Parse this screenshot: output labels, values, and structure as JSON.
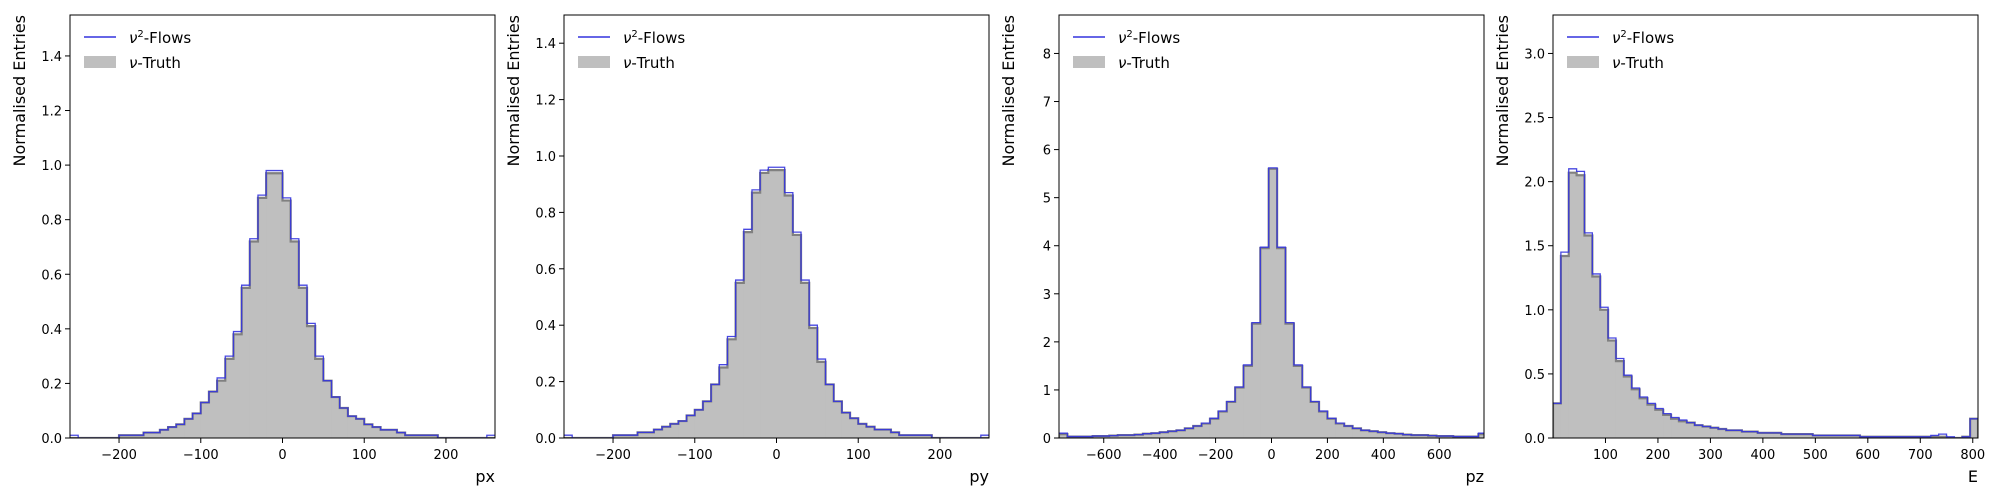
{
  "colors": {
    "flows_line": "#3333dd",
    "truth_fill": "#bfbfbf",
    "truth_edge": "#808080",
    "frame": "#000000"
  },
  "chart_data": [
    {
      "type": "histogram",
      "xlabel": "px",
      "ylabel": "Normalised Entries",
      "xlim": [
        -260,
        260
      ],
      "ylim": [
        0,
        1.55
      ],
      "xticks": [
        -200,
        -100,
        0,
        100,
        200
      ],
      "yticks": [
        0.0,
        0.2,
        0.4,
        0.6,
        0.8,
        1.0,
        1.2,
        1.4
      ],
      "ytick_labels": [
        "0.0",
        "0.2",
        "0.4",
        "0.6",
        "0.8",
        "1.0",
        "1.2",
        "1.4"
      ],
      "legend": {
        "position": "top-left",
        "entries": [
          {
            "key": "flows",
            "prefix": "ν",
            "sup": "2",
            "suffix": "-Flows"
          },
          {
            "key": "truth",
            "prefix": "ν",
            "sup": "",
            "suffix": "-Truth"
          }
        ]
      },
      "bin_edges": [
        -260,
        -250,
        -240,
        -230,
        -220,
        -210,
        -200,
        -190,
        -180,
        -170,
        -160,
        -150,
        -140,
        -130,
        -120,
        -110,
        -100,
        -90,
        -80,
        -70,
        -60,
        -50,
        -40,
        -30,
        -20,
        -10,
        0,
        10,
        20,
        30,
        40,
        50,
        60,
        70,
        80,
        90,
        100,
        110,
        120,
        130,
        140,
        150,
        160,
        170,
        180,
        190,
        200,
        210,
        220,
        230,
        240,
        250,
        260
      ],
      "series": [
        {
          "name": "ν-Truth",
          "style": "filled",
          "values": [
            0.0,
            0.0,
            0.0,
            0.0,
            0.0,
            0.0,
            0.01,
            0.01,
            0.01,
            0.02,
            0.02,
            0.03,
            0.04,
            0.05,
            0.07,
            0.09,
            0.13,
            0.17,
            0.21,
            0.29,
            0.38,
            0.55,
            0.72,
            0.88,
            0.97,
            0.97,
            0.87,
            0.72,
            0.55,
            0.41,
            0.29,
            0.21,
            0.15,
            0.11,
            0.08,
            0.07,
            0.05,
            0.04,
            0.03,
            0.03,
            0.02,
            0.01,
            0.01,
            0.01,
            0.01,
            0.0,
            0.0,
            0.0,
            0.0,
            0.0,
            0.0,
            0.0
          ]
        },
        {
          "name": "ν²-Flows",
          "style": "step",
          "values": [
            0.01,
            0.0,
            0.0,
            0.0,
            0.0,
            0.0,
            0.01,
            0.01,
            0.01,
            0.02,
            0.02,
            0.03,
            0.04,
            0.05,
            0.07,
            0.09,
            0.13,
            0.17,
            0.22,
            0.3,
            0.39,
            0.56,
            0.73,
            0.89,
            0.98,
            0.98,
            0.88,
            0.73,
            0.56,
            0.42,
            0.3,
            0.21,
            0.15,
            0.11,
            0.08,
            0.07,
            0.05,
            0.04,
            0.03,
            0.03,
            0.02,
            0.01,
            0.01,
            0.01,
            0.01,
            0.0,
            0.0,
            0.0,
            0.0,
            0.0,
            0.0,
            0.01
          ]
        }
      ]
    },
    {
      "type": "histogram",
      "xlabel": "py",
      "ylabel": "Normalised Entries",
      "xlim": [
        -260,
        260
      ],
      "ylim": [
        0,
        1.5
      ],
      "xticks": [
        -200,
        -100,
        0,
        100,
        200
      ],
      "yticks": [
        0.0,
        0.2,
        0.4,
        0.6,
        0.8,
        1.0,
        1.2,
        1.4
      ],
      "ytick_labels": [
        "0.0",
        "0.2",
        "0.4",
        "0.6",
        "0.8",
        "1.0",
        "1.2",
        "1.4"
      ],
      "legend": {
        "position": "top-left",
        "entries": [
          {
            "key": "flows",
            "prefix": "ν",
            "sup": "2",
            "suffix": "-Flows"
          },
          {
            "key": "truth",
            "prefix": "ν",
            "sup": "",
            "suffix": "-Truth"
          }
        ]
      },
      "bin_edges": [
        -260,
        -250,
        -240,
        -230,
        -220,
        -210,
        -200,
        -190,
        -180,
        -170,
        -160,
        -150,
        -140,
        -130,
        -120,
        -110,
        -100,
        -90,
        -80,
        -70,
        -60,
        -50,
        -40,
        -30,
        -20,
        -10,
        0,
        10,
        20,
        30,
        40,
        50,
        60,
        70,
        80,
        90,
        100,
        110,
        120,
        130,
        140,
        150,
        160,
        170,
        180,
        190,
        200,
        210,
        220,
        230,
        240,
        250,
        260
      ],
      "series": [
        {
          "name": "ν-Truth",
          "style": "filled",
          "values": [
            0.0,
            0.0,
            0.0,
            0.0,
            0.0,
            0.0,
            0.01,
            0.01,
            0.01,
            0.02,
            0.02,
            0.03,
            0.04,
            0.05,
            0.06,
            0.08,
            0.1,
            0.13,
            0.19,
            0.25,
            0.35,
            0.55,
            0.73,
            0.87,
            0.94,
            0.95,
            0.95,
            0.86,
            0.72,
            0.55,
            0.39,
            0.27,
            0.19,
            0.13,
            0.09,
            0.07,
            0.05,
            0.04,
            0.03,
            0.03,
            0.02,
            0.01,
            0.01,
            0.01,
            0.01,
            0.0,
            0.0,
            0.0,
            0.0,
            0.0,
            0.0,
            0.0
          ]
        },
        {
          "name": "ν²-Flows",
          "style": "step",
          "values": [
            0.01,
            0.0,
            0.0,
            0.0,
            0.0,
            0.0,
            0.01,
            0.01,
            0.01,
            0.02,
            0.02,
            0.03,
            0.04,
            0.05,
            0.06,
            0.08,
            0.1,
            0.13,
            0.19,
            0.26,
            0.36,
            0.56,
            0.74,
            0.88,
            0.95,
            0.96,
            0.96,
            0.87,
            0.73,
            0.56,
            0.4,
            0.28,
            0.19,
            0.13,
            0.09,
            0.07,
            0.05,
            0.04,
            0.03,
            0.03,
            0.02,
            0.01,
            0.01,
            0.01,
            0.01,
            0.0,
            0.0,
            0.0,
            0.0,
            0.0,
            0.0,
            0.01
          ]
        }
      ]
    },
    {
      "type": "histogram",
      "xlabel": "pz",
      "ylabel": "Normalised Entries",
      "xlim": [
        -760,
        760
      ],
      "ylim": [
        0,
        8.8
      ],
      "xticks": [
        -600,
        -400,
        -200,
        0,
        200,
        400,
        600
      ],
      "yticks": [
        0,
        1,
        2,
        3,
        4,
        5,
        6,
        7,
        8
      ],
      "ytick_labels": [
        "0",
        "1",
        "2",
        "3",
        "4",
        "5",
        "6",
        "7",
        "8"
      ],
      "legend": {
        "position": "top-left",
        "entries": [
          {
            "key": "flows",
            "prefix": "ν",
            "sup": "2",
            "suffix": "-Flows"
          },
          {
            "key": "truth",
            "prefix": "ν",
            "sup": "",
            "suffix": "-Truth"
          }
        ]
      },
      "bin_edges": [
        -760,
        -730,
        -700,
        -670,
        -640,
        -610,
        -580,
        -550,
        -520,
        -490,
        -460,
        -430,
        -400,
        -370,
        -340,
        -310,
        -280,
        -250,
        -220,
        -190,
        -160,
        -130,
        -100,
        -70,
        -40,
        -10,
        20,
        50,
        80,
        110,
        140,
        170,
        200,
        230,
        260,
        290,
        320,
        350,
        380,
        410,
        440,
        470,
        500,
        530,
        560,
        590,
        620,
        650,
        680,
        710,
        740,
        770
      ],
      "series": [
        {
          "name": "ν-Truth",
          "style": "filled",
          "values": [
            0.08,
            0.03,
            0.03,
            0.03,
            0.04,
            0.04,
            0.05,
            0.06,
            0.06,
            0.07,
            0.09,
            0.1,
            0.12,
            0.14,
            0.16,
            0.2,
            0.25,
            0.3,
            0.4,
            0.55,
            0.75,
            1.05,
            1.5,
            2.38,
            3.95,
            5.6,
            3.95,
            2.38,
            1.5,
            1.05,
            0.75,
            0.55,
            0.4,
            0.3,
            0.25,
            0.2,
            0.16,
            0.14,
            0.12,
            0.1,
            0.09,
            0.07,
            0.06,
            0.06,
            0.05,
            0.04,
            0.04,
            0.03,
            0.03,
            0.03,
            0.08
          ]
        },
        {
          "name": "ν²-Flows",
          "style": "step",
          "values": [
            0.1,
            0.03,
            0.03,
            0.03,
            0.04,
            0.04,
            0.05,
            0.06,
            0.06,
            0.07,
            0.09,
            0.1,
            0.12,
            0.14,
            0.16,
            0.2,
            0.25,
            0.31,
            0.41,
            0.56,
            0.76,
            1.06,
            1.52,
            2.4,
            3.97,
            5.62,
            3.97,
            2.4,
            1.52,
            1.06,
            0.76,
            0.56,
            0.41,
            0.31,
            0.25,
            0.2,
            0.16,
            0.14,
            0.12,
            0.1,
            0.09,
            0.07,
            0.06,
            0.06,
            0.05,
            0.04,
            0.04,
            0.03,
            0.03,
            0.03,
            0.1
          ]
        }
      ]
    },
    {
      "type": "histogram",
      "xlabel": "E",
      "ylabel": "Normalised Entries",
      "xlim": [
        0,
        810
      ],
      "ylim": [
        0,
        3.3
      ],
      "xticks": [
        100,
        200,
        300,
        400,
        500,
        600,
        700,
        800
      ],
      "yticks": [
        0.0,
        0.5,
        1.0,
        1.5,
        2.0,
        2.5,
        3.0
      ],
      "ytick_labels": [
        "0.0",
        "0.5",
        "1.0",
        "1.5",
        "2.0",
        "2.5",
        "3.0"
      ],
      "legend": {
        "position": "top-left",
        "entries": [
          {
            "key": "flows",
            "prefix": "ν",
            "sup": "2",
            "suffix": "-Flows"
          },
          {
            "key": "truth",
            "prefix": "ν",
            "sup": "",
            "suffix": "-Truth"
          }
        ]
      },
      "bin_edges": [
        0,
        15,
        30,
        45,
        60,
        75,
        90,
        105,
        120,
        135,
        150,
        165,
        180,
        195,
        210,
        225,
        240,
        255,
        270,
        285,
        300,
        315,
        330,
        345,
        360,
        375,
        390,
        405,
        420,
        435,
        450,
        465,
        480,
        495,
        510,
        525,
        540,
        555,
        570,
        585,
        600,
        615,
        630,
        645,
        660,
        675,
        690,
        705,
        720,
        735,
        750,
        765,
        780,
        795,
        810
      ],
      "series": [
        {
          "name": "ν-Truth",
          "style": "filled",
          "values": [
            0.27,
            1.42,
            2.07,
            2.05,
            1.58,
            1.26,
            1.0,
            0.76,
            0.6,
            0.48,
            0.38,
            0.31,
            0.26,
            0.22,
            0.18,
            0.15,
            0.13,
            0.12,
            0.1,
            0.09,
            0.08,
            0.07,
            0.06,
            0.06,
            0.05,
            0.05,
            0.04,
            0.04,
            0.04,
            0.03,
            0.03,
            0.03,
            0.03,
            0.02,
            0.02,
            0.02,
            0.02,
            0.02,
            0.02,
            0.01,
            0.01,
            0.01,
            0.01,
            0.01,
            0.01,
            0.01,
            0.01,
            0.01,
            0.01,
            0.01,
            0.0,
            0.0,
            0.01,
            0.15
          ]
        },
        {
          "name": "ν²-Flows",
          "style": "step",
          "values": [
            0.27,
            1.45,
            2.1,
            2.08,
            1.6,
            1.28,
            1.02,
            0.78,
            0.62,
            0.49,
            0.39,
            0.32,
            0.27,
            0.23,
            0.19,
            0.16,
            0.14,
            0.12,
            0.1,
            0.09,
            0.08,
            0.07,
            0.06,
            0.06,
            0.05,
            0.05,
            0.04,
            0.04,
            0.04,
            0.03,
            0.03,
            0.03,
            0.03,
            0.02,
            0.02,
            0.02,
            0.02,
            0.02,
            0.02,
            0.01,
            0.01,
            0.01,
            0.01,
            0.01,
            0.01,
            0.01,
            0.01,
            0.01,
            0.02,
            0.03,
            0.01,
            0.0,
            0.01,
            0.15
          ]
        }
      ]
    }
  ]
}
